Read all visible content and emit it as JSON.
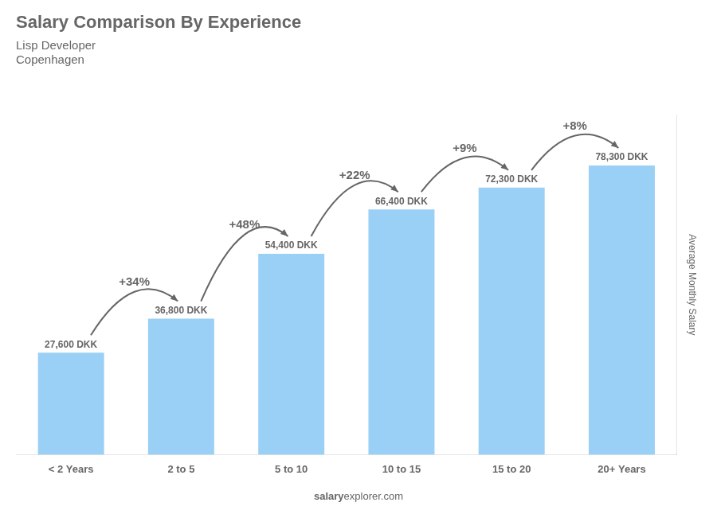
{
  "chart_data": {
    "type": "bar",
    "title": "Salary Comparison By Experience",
    "subtitle": [
      "Lisp Developer",
      "Copenhagen"
    ],
    "categories": [
      "< 2 Years",
      "2 to 5",
      "5 to 10",
      "10 to 15",
      "15 to 20",
      "20+ Years"
    ],
    "values": [
      27600,
      36800,
      54400,
      66400,
      72300,
      78300
    ],
    "value_labels": [
      "27,600 DKK",
      "36,800 DKK",
      "54,400 DKK",
      "66,400 DKK",
      "72,300 DKK",
      "78,300 DKK"
    ],
    "data_labels": true,
    "annotations": [
      "+34%",
      "+48%",
      "+22%",
      "+9%",
      "+8%"
    ],
    "ylabel": "Average Monthly Salary",
    "ylim": [
      0,
      92000
    ],
    "source": [
      "salary",
      "explorer.com"
    ],
    "grid": false,
    "tick_labels": "x"
  }
}
